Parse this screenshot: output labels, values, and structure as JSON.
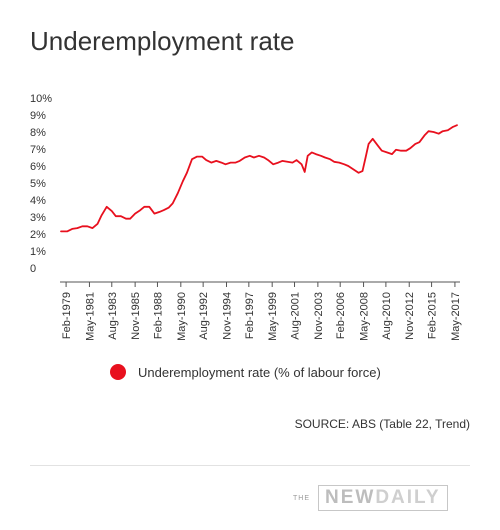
{
  "header": {
    "title": "Underemployment rate"
  },
  "chart_data": {
    "type": "line",
    "title": "Underemployment rate",
    "xlabel": "",
    "ylabel": "",
    "ylim": [
      0,
      10
    ],
    "y_ticks": [
      0,
      1,
      2,
      3,
      4,
      5,
      6,
      7,
      8,
      9,
      10
    ],
    "y_tick_labels": [
      "0",
      "1%",
      "2%",
      "3%",
      "4%",
      "5%",
      "6%",
      "7%",
      "8%",
      "9%",
      "10%"
    ],
    "x_range": [
      1978.5,
      2017.9
    ],
    "x_tick_labels": [
      "Feb-1979",
      "May-1981",
      "Aug-1983",
      "Nov-1985",
      "Feb-1988",
      "May-1990",
      "Aug-1992",
      "Nov-1994",
      "Feb-1997",
      "May-1999",
      "Aug-2001",
      "Nov-2003",
      "Feb-2006",
      "May-2008",
      "Aug-2010",
      "Nov-2012",
      "Feb-2015",
      "May-2017"
    ],
    "x_tick_values": [
      1979.1,
      1981.4,
      1983.6,
      1985.9,
      1988.1,
      1990.4,
      1992.6,
      1994.9,
      1997.1,
      1999.4,
      2001.6,
      2003.9,
      2006.1,
      2008.4,
      2010.6,
      2012.9,
      2015.1,
      2017.4
    ],
    "grid": false,
    "legend_position": "bottom-left",
    "series": [
      {
        "name": "Underemployment rate (% of labour force)",
        "color": "#e8101e",
        "x": [
          1978.6,
          1979.2,
          1979.7,
          1980.2,
          1980.7,
          1981.2,
          1981.7,
          1982.2,
          1982.6,
          1983.1,
          1983.6,
          1984.0,
          1984.5,
          1985.0,
          1985.4,
          1985.9,
          1986.4,
          1986.8,
          1987.3,
          1987.8,
          1988.3,
          1988.7,
          1989.2,
          1989.6,
          1990.1,
          1990.6,
          1991.0,
          1991.5,
          1992.0,
          1992.5,
          1992.9,
          1993.4,
          1993.9,
          1994.4,
          1994.8,
          1995.3,
          1995.8,
          1996.2,
          1996.7,
          1997.2,
          1997.6,
          1998.1,
          1998.6,
          1999.0,
          1999.5,
          2000.0,
          2000.4,
          2000.9,
          2001.4,
          2001.8,
          2002.3,
          2002.6,
          2002.9,
          2003.3,
          2003.7,
          2004.2,
          2004.6,
          2005.1,
          2005.5,
          2006.0,
          2006.5,
          2006.9,
          2007.4,
          2007.9,
          2008.3,
          2008.6,
          2008.9,
          2009.3,
          2009.8,
          2010.2,
          2010.7,
          2011.2,
          2011.6,
          2012.1,
          2012.6,
          2013.0,
          2013.5,
          2013.9,
          2014.4,
          2014.8,
          2015.3,
          2015.8,
          2016.2,
          2016.7,
          2017.2,
          2017.6
        ],
        "y": [
          2.15,
          2.15,
          2.3,
          2.35,
          2.45,
          2.45,
          2.35,
          2.6,
          3.1,
          3.6,
          3.35,
          3.05,
          3.05,
          2.9,
          2.9,
          3.2,
          3.4,
          3.6,
          3.6,
          3.2,
          3.3,
          3.4,
          3.55,
          3.8,
          4.4,
          5.1,
          5.6,
          6.4,
          6.55,
          6.55,
          6.35,
          6.2,
          6.3,
          6.2,
          6.1,
          6.2,
          6.2,
          6.3,
          6.5,
          6.6,
          6.5,
          6.6,
          6.5,
          6.35,
          6.1,
          6.2,
          6.3,
          6.25,
          6.2,
          6.35,
          6.1,
          5.65,
          6.6,
          6.8,
          6.7,
          6.6,
          6.5,
          6.4,
          6.25,
          6.2,
          6.1,
          6.0,
          5.8,
          5.6,
          5.7,
          6.5,
          7.3,
          7.6,
          7.2,
          6.9,
          6.8,
          6.7,
          6.95,
          6.9,
          6.9,
          7.05,
          7.3,
          7.4,
          7.8,
          8.05,
          8.0,
          7.9,
          8.05,
          8.1,
          8.3,
          8.4
        ]
      }
    ]
  },
  "legend": {
    "label": "Underemployment rate (% of labour force)",
    "dot_color": "#e8101e"
  },
  "source": {
    "text": "SOURCE: ABS (Table 22, Trend)"
  },
  "logo": {
    "the": "THE",
    "new": "NEW",
    "daily": "DAILY"
  }
}
